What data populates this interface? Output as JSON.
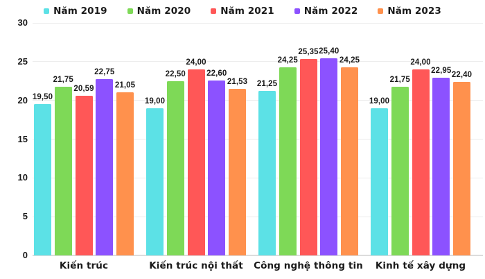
{
  "chart_data": {
    "type": "bar",
    "title": "",
    "xlabel": "",
    "ylabel": "",
    "categories": [
      "Kiến trúc",
      "Kiến trúc nội thất",
      "Công nghệ thông tin",
      "Kinh tế xây dựng"
    ],
    "series": [
      {
        "name": "Năm 2019",
        "color": "#5CE1E6",
        "values": [
          19.5,
          19.0,
          21.25,
          19.0
        ],
        "labels": [
          "19,50",
          "19,00",
          "21,25",
          "19,00"
        ]
      },
      {
        "name": "Năm 2020",
        "color": "#7ED957",
        "values": [
          21.75,
          22.5,
          24.25,
          21.75
        ],
        "labels": [
          "21,75",
          "22,50",
          "24,25",
          "21,75"
        ]
      },
      {
        "name": "Năm 2021",
        "color": "#FF5757",
        "values": [
          20.59,
          24.0,
          25.35,
          24.0
        ],
        "labels": [
          "20,59",
          "24,00",
          "25,35",
          "24,00"
        ]
      },
      {
        "name": "Năm 2022",
        "color": "#8C52FF",
        "values": [
          22.75,
          22.6,
          25.4,
          22.95
        ],
        "labels": [
          "22,75",
          "22,60",
          "25,40",
          "22,95"
        ]
      },
      {
        "name": "Năm 2023",
        "color": "#FF914D",
        "values": [
          21.05,
          21.53,
          24.25,
          22.4
        ],
        "labels": [
          "21,05",
          "21,53",
          "24,25",
          "22,40"
        ]
      }
    ],
    "ylim": [
      0,
      30
    ],
    "yticks": [
      0,
      5,
      10,
      15,
      20,
      25,
      30
    ],
    "ytick_labels": [
      "0",
      "5",
      "10",
      "15",
      "20",
      "25",
      "30"
    ],
    "grid": true,
    "legend_position": "top",
    "colors": {
      "text": "#1a1a1a",
      "gridline": "#ececec",
      "baseline": "#dcdcdc",
      "background": "#ffffff"
    }
  }
}
